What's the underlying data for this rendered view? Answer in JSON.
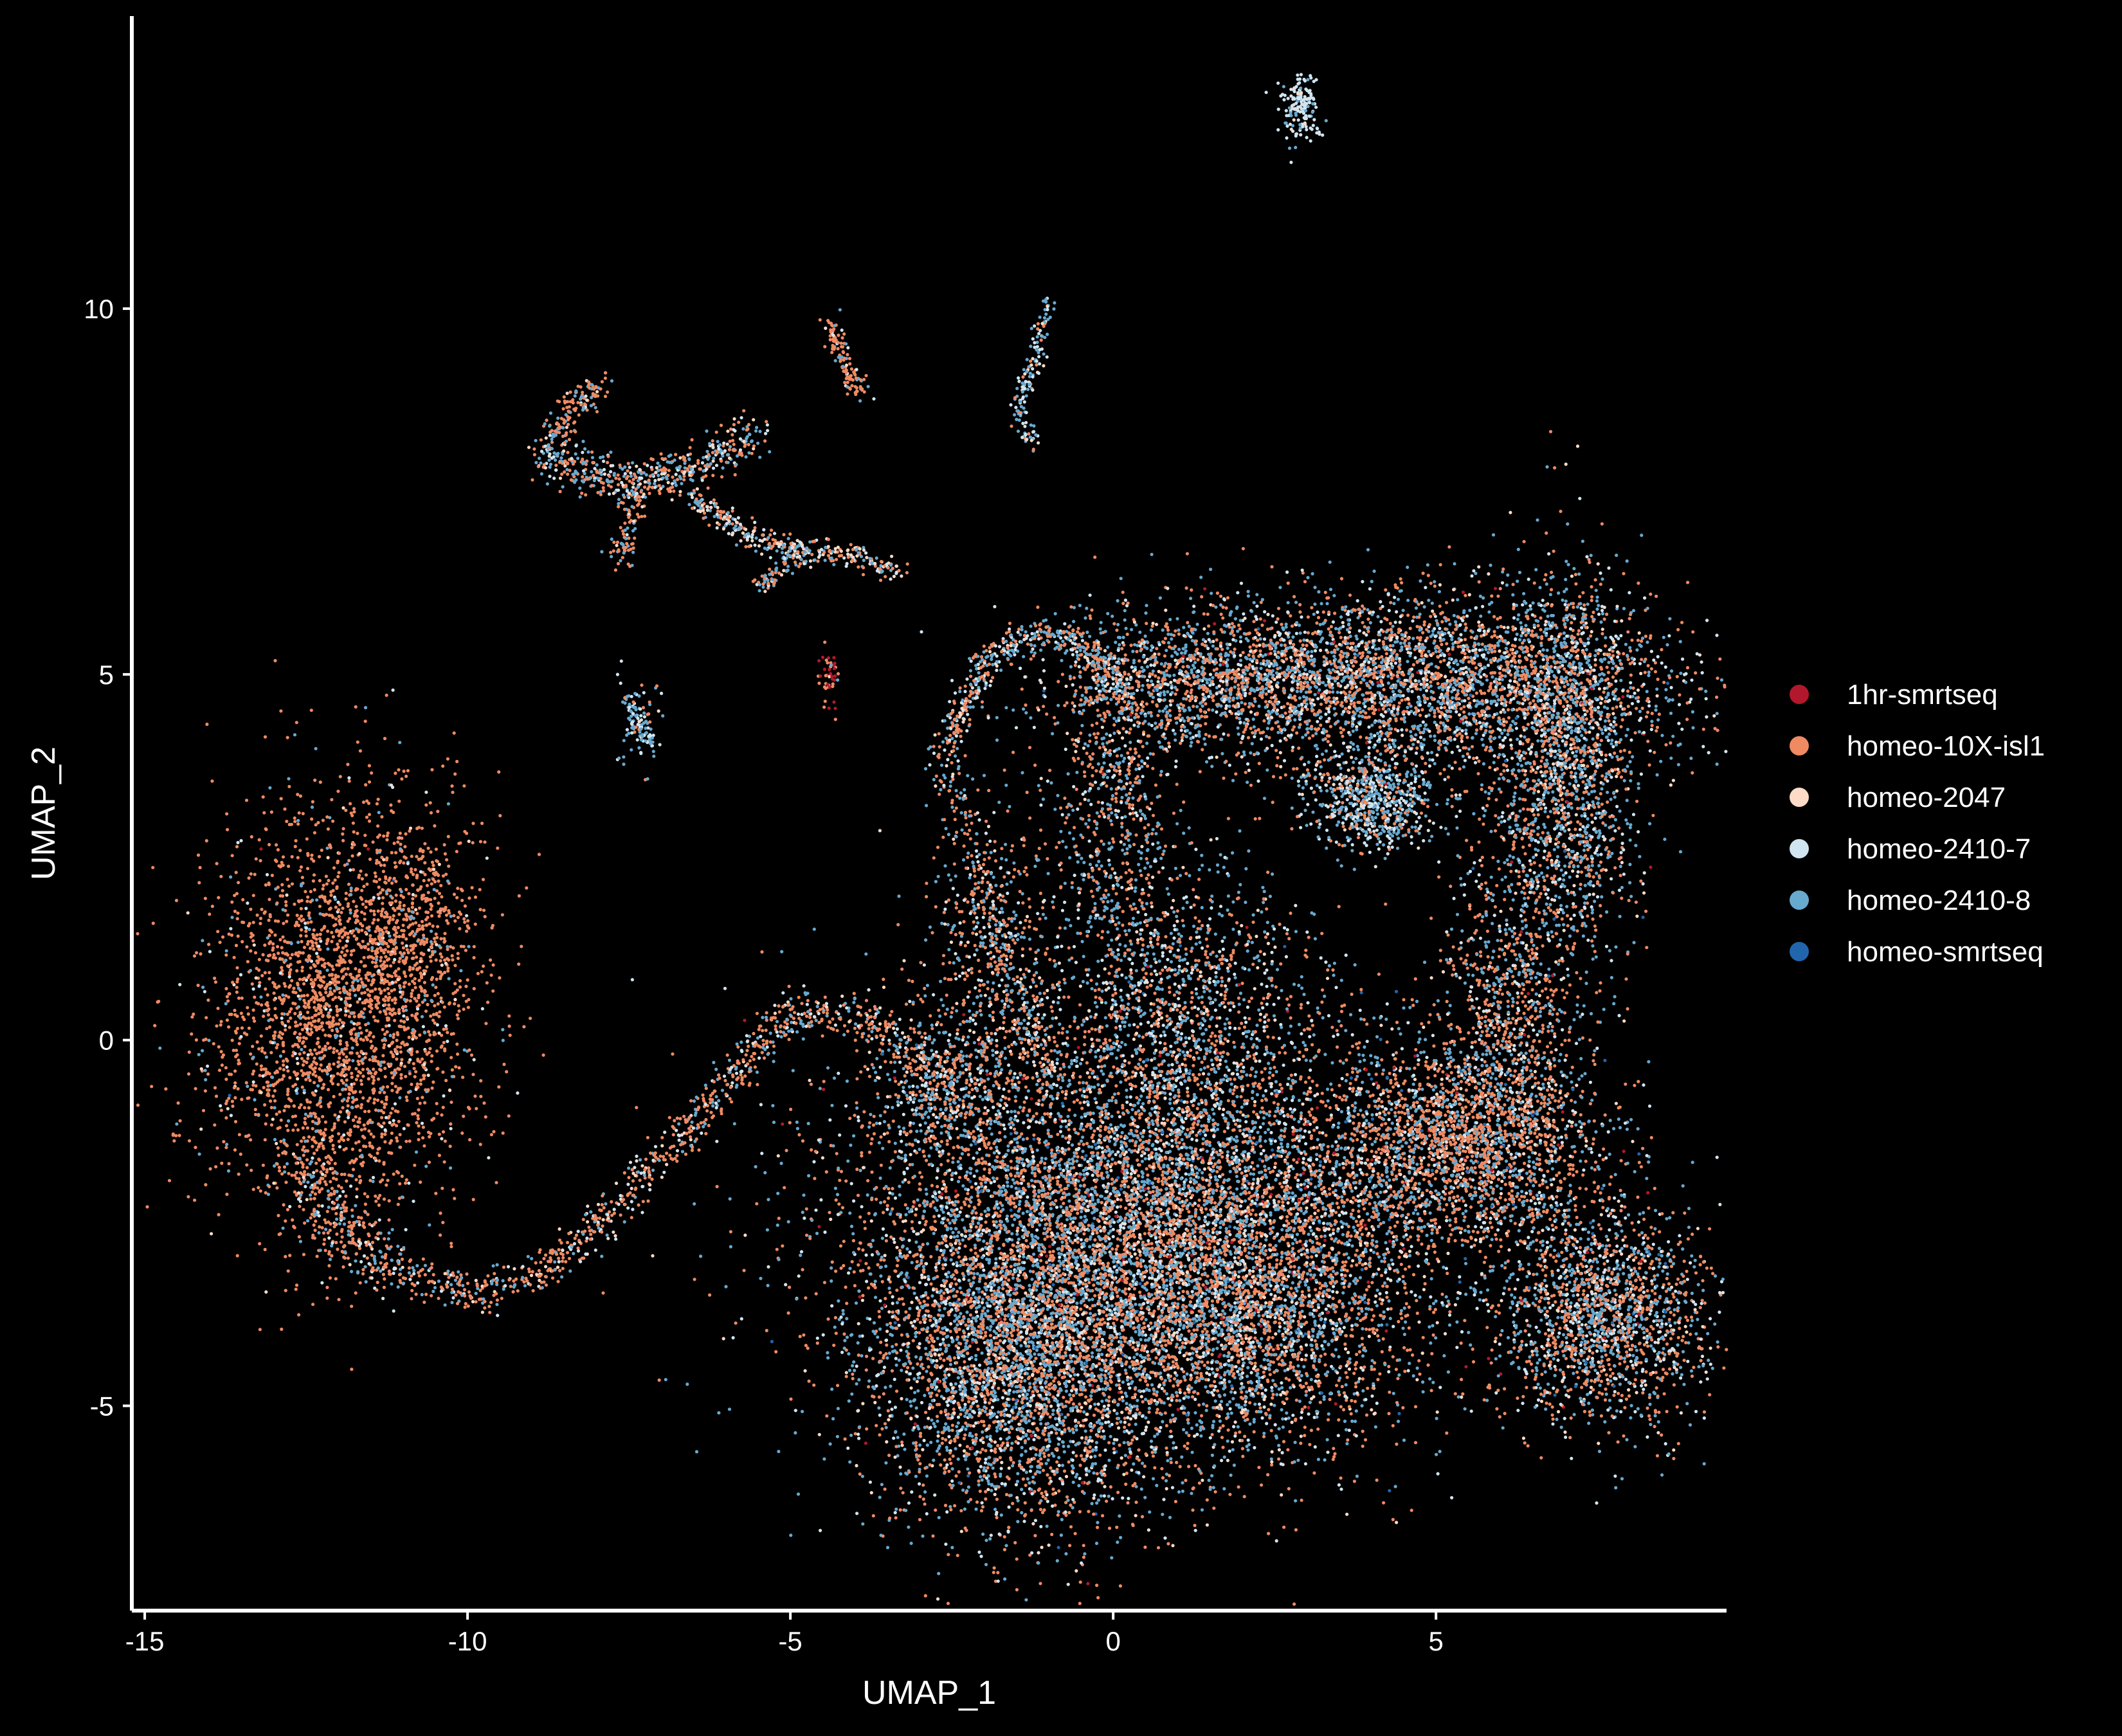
{
  "chart_data": {
    "type": "scatter",
    "title": "",
    "xlabel": "UMAP_1",
    "ylabel": "UMAP_2",
    "xlim": [
      -15.2,
      9.5
    ],
    "ylim": [
      -7.8,
      14
    ],
    "x_ticks": [
      -15,
      -10,
      -5,
      0,
      5
    ],
    "x_tick_labels": [
      "-15",
      "-10",
      "-5",
      "0",
      "5"
    ],
    "y_ticks": [
      -5,
      0,
      5,
      10
    ],
    "y_tick_labels": [
      "-5",
      "0",
      "5",
      "10"
    ],
    "grid": false,
    "background": "#000000",
    "axis_color": "#ffffff",
    "legend_position": "right",
    "series": [
      {
        "name": "1hr-smrtseq",
        "color": "#b2182b"
      },
      {
        "name": "homeo-10X-isl1",
        "color": "#ef8a62"
      },
      {
        "name": "homeo-2047",
        "color": "#fddbc7"
      },
      {
        "name": "homeo-2410-7",
        "color": "#d1e5f0"
      },
      {
        "name": "homeo-2410-8",
        "color": "#67a9cf"
      },
      {
        "name": "homeo-smrtseq",
        "color": "#2166ac"
      }
    ],
    "point_clusters": [
      {
        "cx": -12.0,
        "cy": 0.3,
        "sx": 1.0,
        "sy": 1.4,
        "n": 2600,
        "mix": [
          0.002,
          0.86,
          0.02,
          0.04,
          0.075,
          0.003
        ]
      },
      {
        "cx": -10.9,
        "cy": 1.5,
        "sx": 0.55,
        "sy": 0.9,
        "n": 500,
        "mix": [
          0.0,
          0.85,
          0.03,
          0.04,
          0.08,
          0.0
        ]
      },
      {
        "cx": 1.1,
        "cy": 0.6,
        "sx": 0.9,
        "sy": 1.0,
        "n": 900,
        "mix": [
          0.005,
          0.3,
          0.08,
          0.22,
          0.39,
          0.005
        ]
      },
      {
        "cx": 0.5,
        "cy": -2.3,
        "sx": 2.3,
        "sy": 1.5,
        "n": 7000,
        "mix": [
          0.01,
          0.42,
          0.08,
          0.14,
          0.34,
          0.01
        ]
      },
      {
        "cx": -1.5,
        "cy": -4.3,
        "sx": 1.2,
        "sy": 1.2,
        "n": 3500,
        "mix": [
          0.008,
          0.38,
          0.07,
          0.16,
          0.375,
          0.007
        ]
      },
      {
        "cx": 2.0,
        "cy": -3.6,
        "sx": 1.3,
        "sy": 1.0,
        "n": 2400,
        "mix": [
          0.01,
          0.42,
          0.08,
          0.14,
          0.34,
          0.01
        ]
      },
      {
        "cx": 4.8,
        "cy": 4.9,
        "sx": 2.0,
        "sy": 0.6,
        "n": 3200,
        "mix": [
          0.006,
          0.38,
          0.08,
          0.17,
          0.36,
          0.004
        ]
      },
      {
        "cx": 7.0,
        "cy": 3.7,
        "sx": 0.55,
        "sy": 1.3,
        "n": 1600,
        "mix": [
          0.005,
          0.35,
          0.08,
          0.17,
          0.39,
          0.005
        ]
      },
      {
        "cx": 4.0,
        "cy": 3.3,
        "sx": 0.5,
        "sy": 0.35,
        "n": 700,
        "mix": [
          0.0,
          0.2,
          0.05,
          0.3,
          0.45,
          0.0
        ]
      },
      {
        "cx": 6.1,
        "cy": 0.6,
        "sx": 0.5,
        "sy": 1.2,
        "n": 900,
        "mix": [
          0.005,
          0.5,
          0.07,
          0.12,
          0.3,
          0.005
        ]
      },
      {
        "cx": 5.4,
        "cy": -1.4,
        "sx": 1.1,
        "sy": 0.7,
        "n": 2200,
        "mix": [
          0.01,
          0.5,
          0.08,
          0.12,
          0.28,
          0.01
        ]
      },
      {
        "cx": 7.6,
        "cy": -3.8,
        "sx": 0.8,
        "sy": 0.75,
        "n": 1800,
        "mix": [
          0.005,
          0.4,
          0.07,
          0.18,
          0.34,
          0.005
        ]
      },
      {
        "cx": 1.6,
        "cy": 4.9,
        "sx": 1.3,
        "sy": 0.5,
        "n": 1100,
        "mix": [
          0.005,
          0.45,
          0.07,
          0.13,
          0.34,
          0.005
        ]
      },
      {
        "cx": 0.0,
        "cy": 3.0,
        "sx": 0.45,
        "sy": 1.3,
        "n": 700,
        "mix": [
          0.005,
          0.4,
          0.07,
          0.15,
          0.37,
          0.005
        ]
      },
      {
        "cx": -1.9,
        "cy": 1.0,
        "sx": 0.45,
        "sy": 1.3,
        "n": 500,
        "mix": [
          0.0,
          0.45,
          0.07,
          0.15,
          0.33,
          0.0
        ]
      },
      {
        "cx": -2.7,
        "cy": -0.6,
        "sx": 0.4,
        "sy": 0.5,
        "n": 400,
        "mix": [
          0.0,
          0.45,
          0.07,
          0.15,
          0.33,
          0.0
        ]
      },
      {
        "cx": 2.9,
        "cy": 12.7,
        "sx": 0.15,
        "sy": 0.25,
        "n": 160,
        "mix": [
          0.0,
          0.0,
          0.05,
          0.75,
          0.2,
          0.0
        ]
      },
      {
        "cx": -4.4,
        "cy": 4.95,
        "sx": 0.08,
        "sy": 0.22,
        "n": 45,
        "mix": [
          0.5,
          0.4,
          0.05,
          0.0,
          0.05,
          0.0
        ]
      },
      {
        "cx": -7.4,
        "cy": 4.4,
        "sx": 0.18,
        "sy": 0.3,
        "n": 60,
        "mix": [
          0.0,
          0.1,
          0.05,
          0.35,
          0.5,
          0.0
        ]
      }
    ],
    "point_paths": [
      {
        "pts": [
          [
            -11.2,
            -3.1
          ],
          [
            -9.8,
            -3.5
          ],
          [
            -8.5,
            -3.0
          ],
          [
            -7.2,
            -1.8
          ],
          [
            -6.0,
            -0.6
          ],
          [
            -5.0,
            0.4
          ],
          [
            -3.8,
            0.3
          ],
          [
            -3.0,
            -0.3
          ]
        ],
        "n": 900,
        "spread": 0.14,
        "mix": [
          0.0,
          0.55,
          0.08,
          0.15,
          0.22,
          0.0
        ]
      },
      {
        "pts": [
          [
            -12.6,
            -1.5
          ],
          [
            -12.1,
            -2.5
          ],
          [
            -11.3,
            -3.1
          ]
        ],
        "n": 300,
        "spread": 0.25,
        "mix": [
          0.0,
          0.6,
          0.06,
          0.12,
          0.22,
          0.0
        ]
      },
      {
        "pts": [
          [
            -2.6,
            4.0
          ],
          [
            -2.0,
            5.2
          ],
          [
            -1.1,
            5.6
          ],
          [
            -0.5,
            5.4
          ],
          [
            0.3,
            4.6
          ]
        ],
        "n": 500,
        "spread": 0.12,
        "mix": [
          0.0,
          0.4,
          0.08,
          0.17,
          0.35,
          0.0
        ]
      },
      {
        "pts": [
          [
            -2.6,
            4.0
          ],
          [
            -2.2,
            2.5
          ],
          [
            -1.6,
            1.0
          ],
          [
            -1.0,
            -0.5
          ]
        ],
        "n": 300,
        "spread": 0.15,
        "mix": [
          0.0,
          0.45,
          0.07,
          0.15,
          0.33,
          0.0
        ]
      },
      {
        "pts": [
          [
            -8.8,
            8.0
          ],
          [
            -8.2,
            7.8
          ],
          [
            -7.5,
            7.6
          ],
          [
            -6.5,
            7.8
          ],
          [
            -5.5,
            8.3
          ]
        ],
        "n": 500,
        "spread": 0.15,
        "mix": [
          0.0,
          0.4,
          0.08,
          0.17,
          0.35,
          0.0
        ]
      },
      {
        "pts": [
          [
            -8.8,
            8.1
          ],
          [
            -8.4,
            8.6
          ],
          [
            -7.9,
            9.0
          ]
        ],
        "n": 150,
        "spread": 0.12,
        "mix": [
          0.0,
          0.65,
          0.05,
          0.1,
          0.2,
          0.0
        ]
      },
      {
        "pts": [
          [
            -7.3,
            7.6
          ],
          [
            -7.5,
            7.0
          ],
          [
            -7.7,
            6.5
          ]
        ],
        "n": 100,
        "spread": 0.1,
        "mix": [
          0.0,
          0.6,
          0.05,
          0.1,
          0.25,
          0.0
        ]
      },
      {
        "pts": [
          [
            -6.5,
            7.4
          ],
          [
            -5.7,
            6.9
          ],
          [
            -4.9,
            6.7
          ],
          [
            -4.2,
            6.65
          ],
          [
            -3.3,
            6.4
          ]
        ],
        "n": 350,
        "spread": 0.09,
        "mix": [
          0.0,
          0.3,
          0.25,
          0.2,
          0.25,
          0.0
        ]
      },
      {
        "pts": [
          [
            -5.5,
            6.2
          ],
          [
            -4.8,
            6.7
          ]
        ],
        "n": 80,
        "spread": 0.08,
        "mix": [
          0.0,
          0.5,
          0.1,
          0.15,
          0.25,
          0.0
        ]
      },
      {
        "pts": [
          [
            -4.4,
            9.8
          ],
          [
            -4.2,
            9.3
          ],
          [
            -3.9,
            8.8
          ]
        ],
        "n": 120,
        "spread": 0.08,
        "mix": [
          0.0,
          0.75,
          0.05,
          0.05,
          0.15,
          0.0
        ]
      },
      {
        "pts": [
          [
            -1.0,
            10.1
          ],
          [
            -1.2,
            9.3
          ],
          [
            -1.5,
            8.6
          ],
          [
            -1.2,
            8.1
          ]
        ],
        "n": 150,
        "spread": 0.07,
        "mix": [
          0.0,
          0.15,
          0.1,
          0.3,
          0.45,
          0.0
        ]
      },
      {
        "pts": [
          [
            -7.5,
            4.7
          ],
          [
            -7.3,
            4.2
          ],
          [
            -7.1,
            4.0
          ]
        ],
        "n": 70,
        "spread": 0.06,
        "mix": [
          0.0,
          0.1,
          0.05,
          0.35,
          0.5,
          0.0
        ]
      }
    ]
  }
}
